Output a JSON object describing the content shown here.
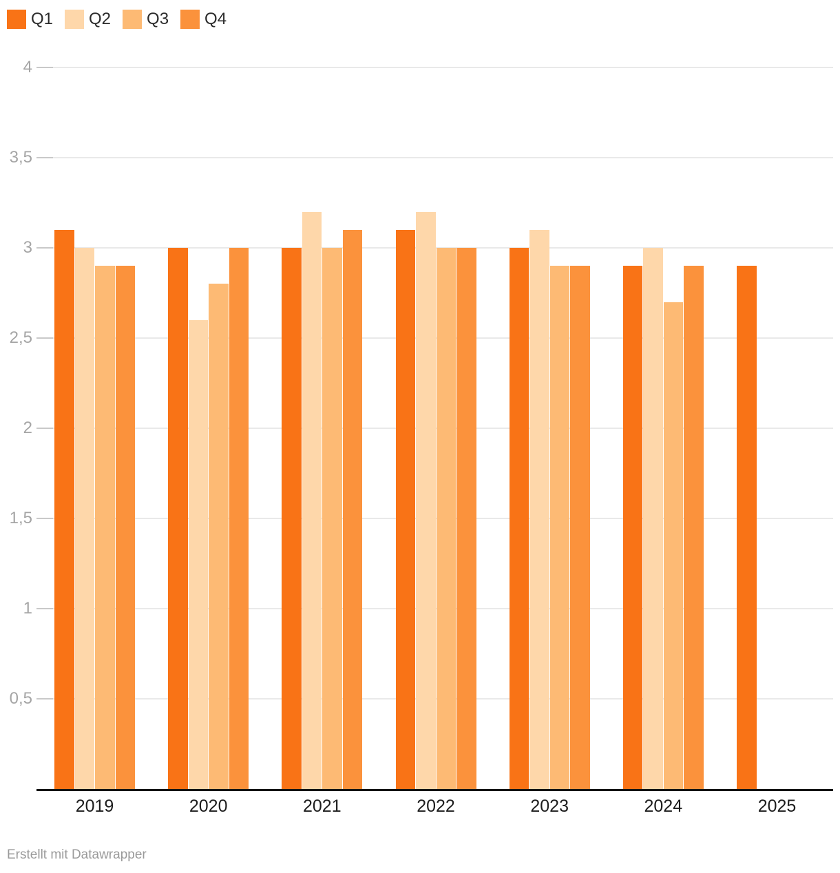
{
  "chart_data": {
    "type": "bar",
    "title": "",
    "xlabel": "",
    "ylabel": "",
    "categories": [
      "2019",
      "2020",
      "2021",
      "2022",
      "2023",
      "2024",
      "2025"
    ],
    "series": [
      {
        "name": "Q1",
        "color": "#f97316",
        "values": [
          3.1,
          3.0,
          3.0,
          3.1,
          3.0,
          2.9,
          2.9
        ]
      },
      {
        "name": "Q2",
        "color": "#fed7aa",
        "values": [
          3.0,
          2.6,
          3.2,
          3.2,
          3.1,
          3.0,
          null
        ]
      },
      {
        "name": "Q3",
        "color": "#fdba74",
        "values": [
          2.9,
          2.8,
          3.0,
          3.0,
          2.9,
          2.7,
          null
        ]
      },
      {
        "name": "Q4",
        "color": "#fb923c",
        "values": [
          2.9,
          3.0,
          3.1,
          3.0,
          2.9,
          2.9,
          null
        ]
      }
    ],
    "ylim": [
      0,
      4
    ],
    "yticks": {
      "values": [
        4,
        3.5,
        3,
        2.5,
        2,
        1.5,
        1,
        0.5
      ],
      "labels": [
        "4",
        "3,5",
        "3",
        "2,5",
        "2",
        "1,5",
        "1",
        "0,5"
      ]
    },
    "grid": "horizontal",
    "legend_position": "top-left",
    "decimal_separator": ","
  },
  "footer": {
    "credit": "Erstellt mit Datawrapper"
  },
  "colors": {
    "background": "#ffffff",
    "grid_line": "#e9e9e9",
    "tick_line": "#c9c9c9",
    "axis_line": "#141414",
    "y_label": "#a5a5a5",
    "x_label": "#1d1d1d",
    "footer_text": "#9a9a9a"
  }
}
